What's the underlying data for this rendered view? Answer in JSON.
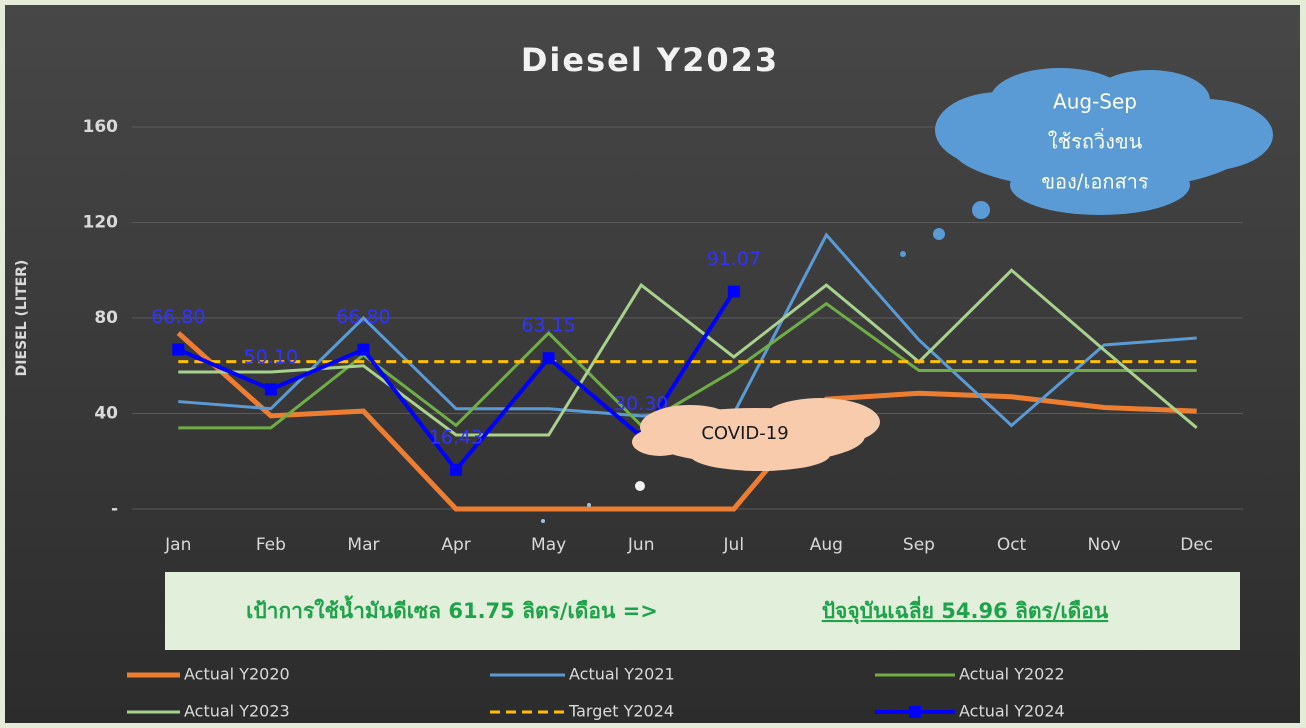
{
  "chart_data": {
    "type": "line",
    "title": "Diesel Y2023",
    "y_label": "DIESEL (LITER)",
    "categories": [
      "Jan",
      "Feb",
      "Mar",
      "Apr",
      "May",
      "Jun",
      "Jul",
      "Aug",
      "Sep",
      "Oct",
      "Nov",
      "Dec"
    ],
    "ylim": [
      0,
      160
    ],
    "yticks": [
      {
        "value": 0,
        "label": "-"
      },
      40,
      80,
      120,
      160
    ],
    "grid": true,
    "legend": "bottom",
    "series": [
      {
        "name": "Actual Y2020",
        "color": "#ed7d31",
        "width": 5,
        "values": [
          73.7,
          39,
          41,
          0,
          0,
          0,
          0,
          46,
          48.5,
          47,
          42.5,
          41
        ]
      },
      {
        "name": "Actual Y2021",
        "color": "#5b9bd5",
        "width": 3,
        "values": [
          45,
          42,
          80,
          42,
          42,
          39,
          40,
          114.8,
          70.8,
          35,
          68.7,
          71.6
        ]
      },
      {
        "name": "Actual Y2022",
        "color": "#70ad47",
        "width": 3,
        "values": [
          34,
          34,
          64.5,
          35,
          73.7,
          35,
          58,
          86,
          58,
          58,
          58,
          58
        ]
      },
      {
        "name": "Actual Y2023",
        "color": "#a9d18e",
        "width": 3,
        "values": [
          57.4,
          57.4,
          60,
          31,
          31,
          93.8,
          63.7,
          93.8,
          61.6,
          100,
          66.6,
          34
        ]
      },
      {
        "name": "Target Y2024",
        "color": "#ffc000",
        "width": 3,
        "dashed": true,
        "values": [
          61.75,
          61.75,
          61.75,
          61.75,
          61.75,
          61.75,
          61.75,
          61.75,
          61.75,
          61.75,
          61.75,
          61.75
        ]
      },
      {
        "name": "Actual Y2024",
        "color": "#0000ff",
        "width": 4,
        "markers": true,
        "values": [
          66.8,
          50.1,
          66.8,
          16.43,
          63.15,
          30.3,
          91.07,
          null,
          null,
          null,
          null,
          null
        ],
        "value_labels": [
          "66.80",
          "50.10",
          "66.80",
          "16.43",
          "63.15",
          "30.30",
          "91.07",
          null,
          null,
          null,
          null,
          null
        ]
      }
    ],
    "annotations": {
      "cloud": [
        "Aug-Sep",
        "ใช้รถวิ่งขน",
        "ของ/เอกสาร"
      ],
      "covid": "COVID-19",
      "note": [
        "เป้าการใช้น้ำมันดีเซล 61.75 ลิตร/เดือน =>",
        "ปัจจุบันเฉลี่ย 54.96 ลิตร/เดือน"
      ]
    }
  }
}
